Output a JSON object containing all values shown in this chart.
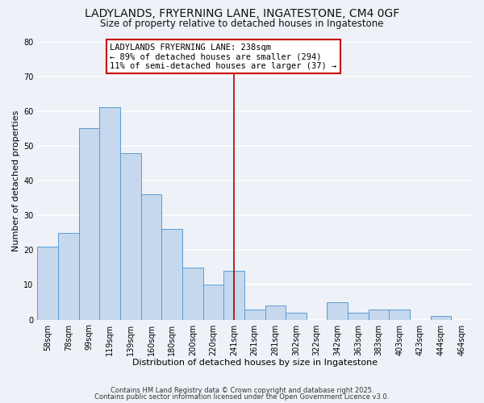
{
  "title": "LADYLANDS, FRYERNING LANE, INGATESTONE, CM4 0GF",
  "subtitle": "Size of property relative to detached houses in Ingatestone",
  "xlabel": "Distribution of detached houses by size in Ingatestone",
  "ylabel": "Number of detached properties",
  "bin_labels": [
    "58sqm",
    "78sqm",
    "99sqm",
    "119sqm",
    "139sqm",
    "160sqm",
    "180sqm",
    "200sqm",
    "220sqm",
    "241sqm",
    "261sqm",
    "281sqm",
    "302sqm",
    "322sqm",
    "342sqm",
    "363sqm",
    "383sqm",
    "403sqm",
    "423sqm",
    "444sqm",
    "464sqm"
  ],
  "bar_heights": [
    21,
    25,
    55,
    61,
    48,
    36,
    26,
    15,
    10,
    14,
    3,
    4,
    2,
    0,
    5,
    2,
    3,
    3,
    0,
    1,
    0
  ],
  "bar_color": "#c5d8ed",
  "bar_edge_color": "#5b9bd5",
  "vline_x": 9,
  "vline_color": "#aa0000",
  "annotation_text": "LADYLANDS FRYERNING LANE: 238sqm\n← 89% of detached houses are smaller (294)\n11% of semi-detached houses are larger (37) →",
  "annotation_box_color": "#ffffff",
  "annotation_box_edge": "#cc0000",
  "ylim": [
    0,
    80
  ],
  "yticks": [
    0,
    10,
    20,
    30,
    40,
    50,
    60,
    70,
    80
  ],
  "background_color": "#eef2f8",
  "grid_color": "#ffffff",
  "footer_line1": "Contains HM Land Registry data © Crown copyright and database right 2025.",
  "footer_line2": "Contains public sector information licensed under the Open Government Licence v3.0.",
  "title_fontsize": 10,
  "subtitle_fontsize": 8.5,
  "axis_label_fontsize": 8,
  "tick_fontsize": 7,
  "annotation_fontsize": 7.5,
  "footer_fontsize": 6
}
